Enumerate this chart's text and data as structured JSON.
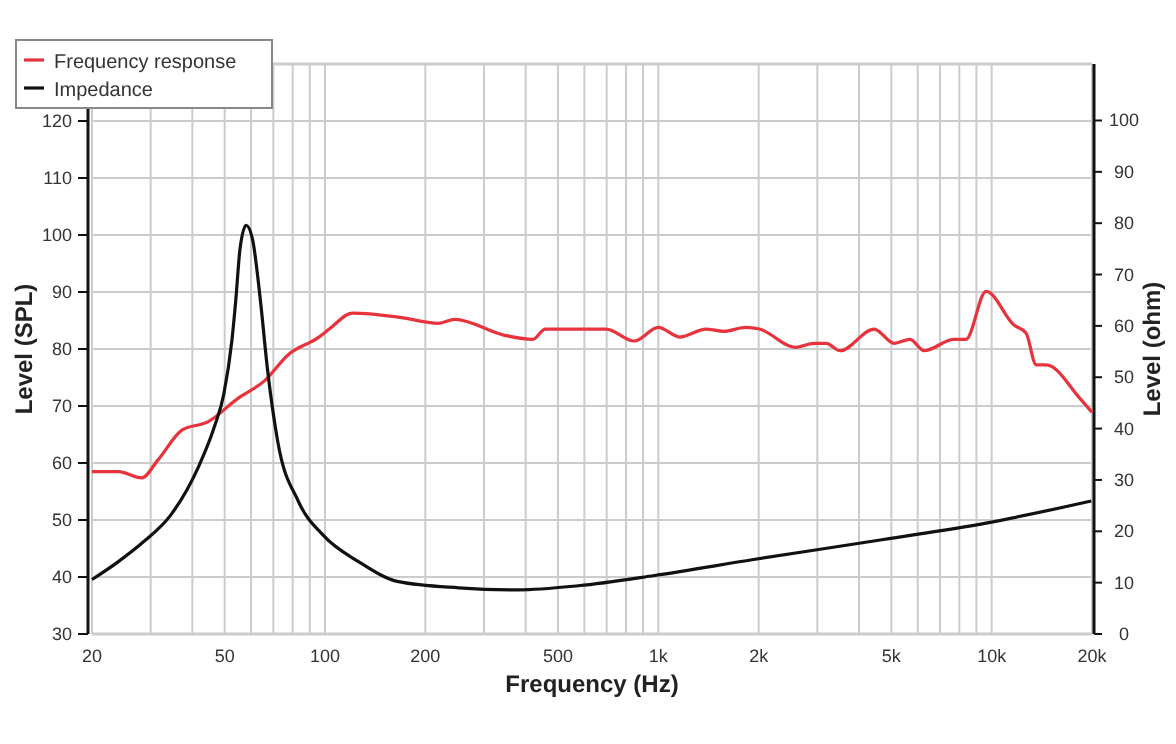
{
  "chart_data": {
    "type": "line",
    "xlabel": "Frequency (Hz)",
    "ylabel": "Level (SPL)",
    "y2label": "Level (ohm)",
    "log": "x",
    "grid": true,
    "legend": "top left",
    "marker": "none",
    "line_style": "solid",
    "xlim": [
      20,
      20000
    ],
    "xticks": [
      20,
      {
        "value": 30,
        "label": null
      },
      {
        "value": 40,
        "label": null
      },
      50,
      {
        "value": 60,
        "label": null
      },
      {
        "value": 70,
        "label": null
      },
      {
        "value": 80,
        "label": null
      },
      {
        "value": 90,
        "label": null
      },
      100,
      200,
      {
        "value": 300,
        "label": null
      },
      {
        "value": 400,
        "label": null
      },
      500,
      {
        "value": 600,
        "label": null
      },
      {
        "value": 700,
        "label": null
      },
      {
        "value": 800,
        "label": null
      },
      {
        "value": 900,
        "label": null
      },
      {
        "value": 1000,
        "label": "1k"
      },
      {
        "value": 2000,
        "label": "2k"
      },
      {
        "value": 3000,
        "label": null
      },
      {
        "value": 4000,
        "label": null
      },
      {
        "value": 5000,
        "label": "5k"
      },
      {
        "value": 6000,
        "label": null
      },
      {
        "value": 7000,
        "label": null
      },
      {
        "value": 8000,
        "label": null
      },
      {
        "value": 9000,
        "label": null
      },
      {
        "value": 10000,
        "label": "10k"
      },
      {
        "value": 20000,
        "label": "20k"
      }
    ],
    "ylim": [
      30,
      130
    ],
    "yticks": [
      30,
      40,
      50,
      60,
      70,
      80,
      90,
      100,
      110,
      120
    ],
    "y2lim": [
      0,
      111
    ],
    "y2ticks": [
      0,
      10,
      20,
      30,
      40,
      50,
      60,
      70,
      80,
      90,
      100
    ],
    "series": [
      {
        "name": "Frequency response",
        "color": "#e8323c",
        "x": [
          20,
          24,
          28.2,
          31.6,
          37.3,
          44.5,
          54.7,
          65.8,
          77.6,
          95.4,
          103,
          121,
          166,
          219,
          245,
          346,
          420,
          458,
          565,
          697,
          847,
          1000,
          1160,
          1390,
          1570,
          1830,
          2010,
          2580,
          2930,
          3190,
          3510,
          4440,
          5100,
          5690,
          6270,
          7710,
          8370,
          9620,
          11670,
          12680,
          13600,
          14580,
          18420,
          20000
        ],
        "values": [
          58.5,
          58.5,
          57.4,
          60.6,
          65.8,
          67.2,
          71.3,
          74.4,
          79,
          82,
          83.5,
          86.3,
          85.6,
          84.5,
          85.2,
          82.4,
          81.7,
          83.5,
          83.5,
          83.5,
          81.4,
          83.8,
          82.1,
          83.5,
          83.1,
          83.8,
          83.5,
          80.3,
          81,
          81,
          79.7,
          83.5,
          81,
          81.7,
          79.7,
          81.7,
          81.7,
          90.1,
          84.2,
          82.8,
          77.2,
          77.2,
          71.3,
          68.9
        ]
      },
      {
        "name": "Impedance",
        "color": "#111111",
        "axis": "y2",
        "x": [
          20,
          24,
          28.6,
          34.4,
          41.7,
          46.6,
          49.7,
          52.6,
          54,
          55.6,
          58,
          60.6,
          64,
          67.1,
          72.1,
          83.1,
          98.9,
          126,
          166,
          252,
          380,
          575,
          974,
          1930,
          4740,
          9620,
          19900
        ],
        "values": [
          10.6,
          14.1,
          18,
          23.1,
          32.5,
          40.4,
          46.7,
          57.3,
          65,
          75,
          79.6,
          76.9,
          65,
          52,
          37.6,
          25.9,
          19.2,
          14.1,
          10.2,
          9,
          8.6,
          9.4,
          11.4,
          14.5,
          18.4,
          21.6,
          25.9
        ]
      }
    ]
  }
}
